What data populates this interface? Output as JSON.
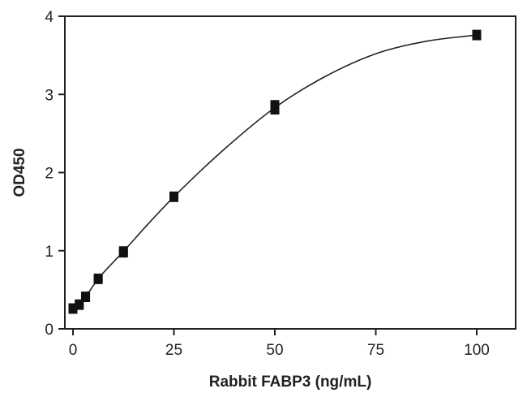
{
  "chart_data": {
    "type": "scatter",
    "title": "",
    "xlabel": "Rabbit FABP3 (ng/mL)",
    "ylabel": "OD450",
    "xlim": [
      0,
      110
    ],
    "ylim": [
      0,
      4
    ],
    "x_ticks": [
      0,
      25,
      50,
      75,
      100
    ],
    "y_ticks": [
      0,
      1,
      2,
      3,
      4
    ],
    "grid": false,
    "legend": "none",
    "colors": {
      "marker": "#111111",
      "line": "#222222"
    },
    "series": [
      {
        "marker": "square",
        "points": [
          {
            "x": 0,
            "y": 0.25
          },
          {
            "x": 0,
            "y": 0.27
          },
          {
            "x": 1.56,
            "y": 0.3
          },
          {
            "x": 1.56,
            "y": 0.32
          },
          {
            "x": 3.125,
            "y": 0.4
          },
          {
            "x": 3.125,
            "y": 0.42
          },
          {
            "x": 6.25,
            "y": 0.63
          },
          {
            "x": 6.25,
            "y": 0.65
          },
          {
            "x": 12.5,
            "y": 0.97
          },
          {
            "x": 12.5,
            "y": 1.0
          },
          {
            "x": 25,
            "y": 1.68
          },
          {
            "x": 25,
            "y": 1.7
          },
          {
            "x": 50,
            "y": 2.8
          },
          {
            "x": 50,
            "y": 2.87
          },
          {
            "x": 100,
            "y": 3.75
          },
          {
            "x": 100,
            "y": 3.77
          }
        ]
      }
    ],
    "fit_curve": {
      "x": [
        0,
        1.56,
        3.125,
        6.25,
        12.5,
        18.75,
        25,
        37.5,
        50,
        62.5,
        75,
        87.5,
        100
      ],
      "y": [
        0.26,
        0.31,
        0.41,
        0.64,
        0.99,
        1.35,
        1.69,
        2.3,
        2.83,
        3.23,
        3.52,
        3.68,
        3.76
      ]
    }
  }
}
